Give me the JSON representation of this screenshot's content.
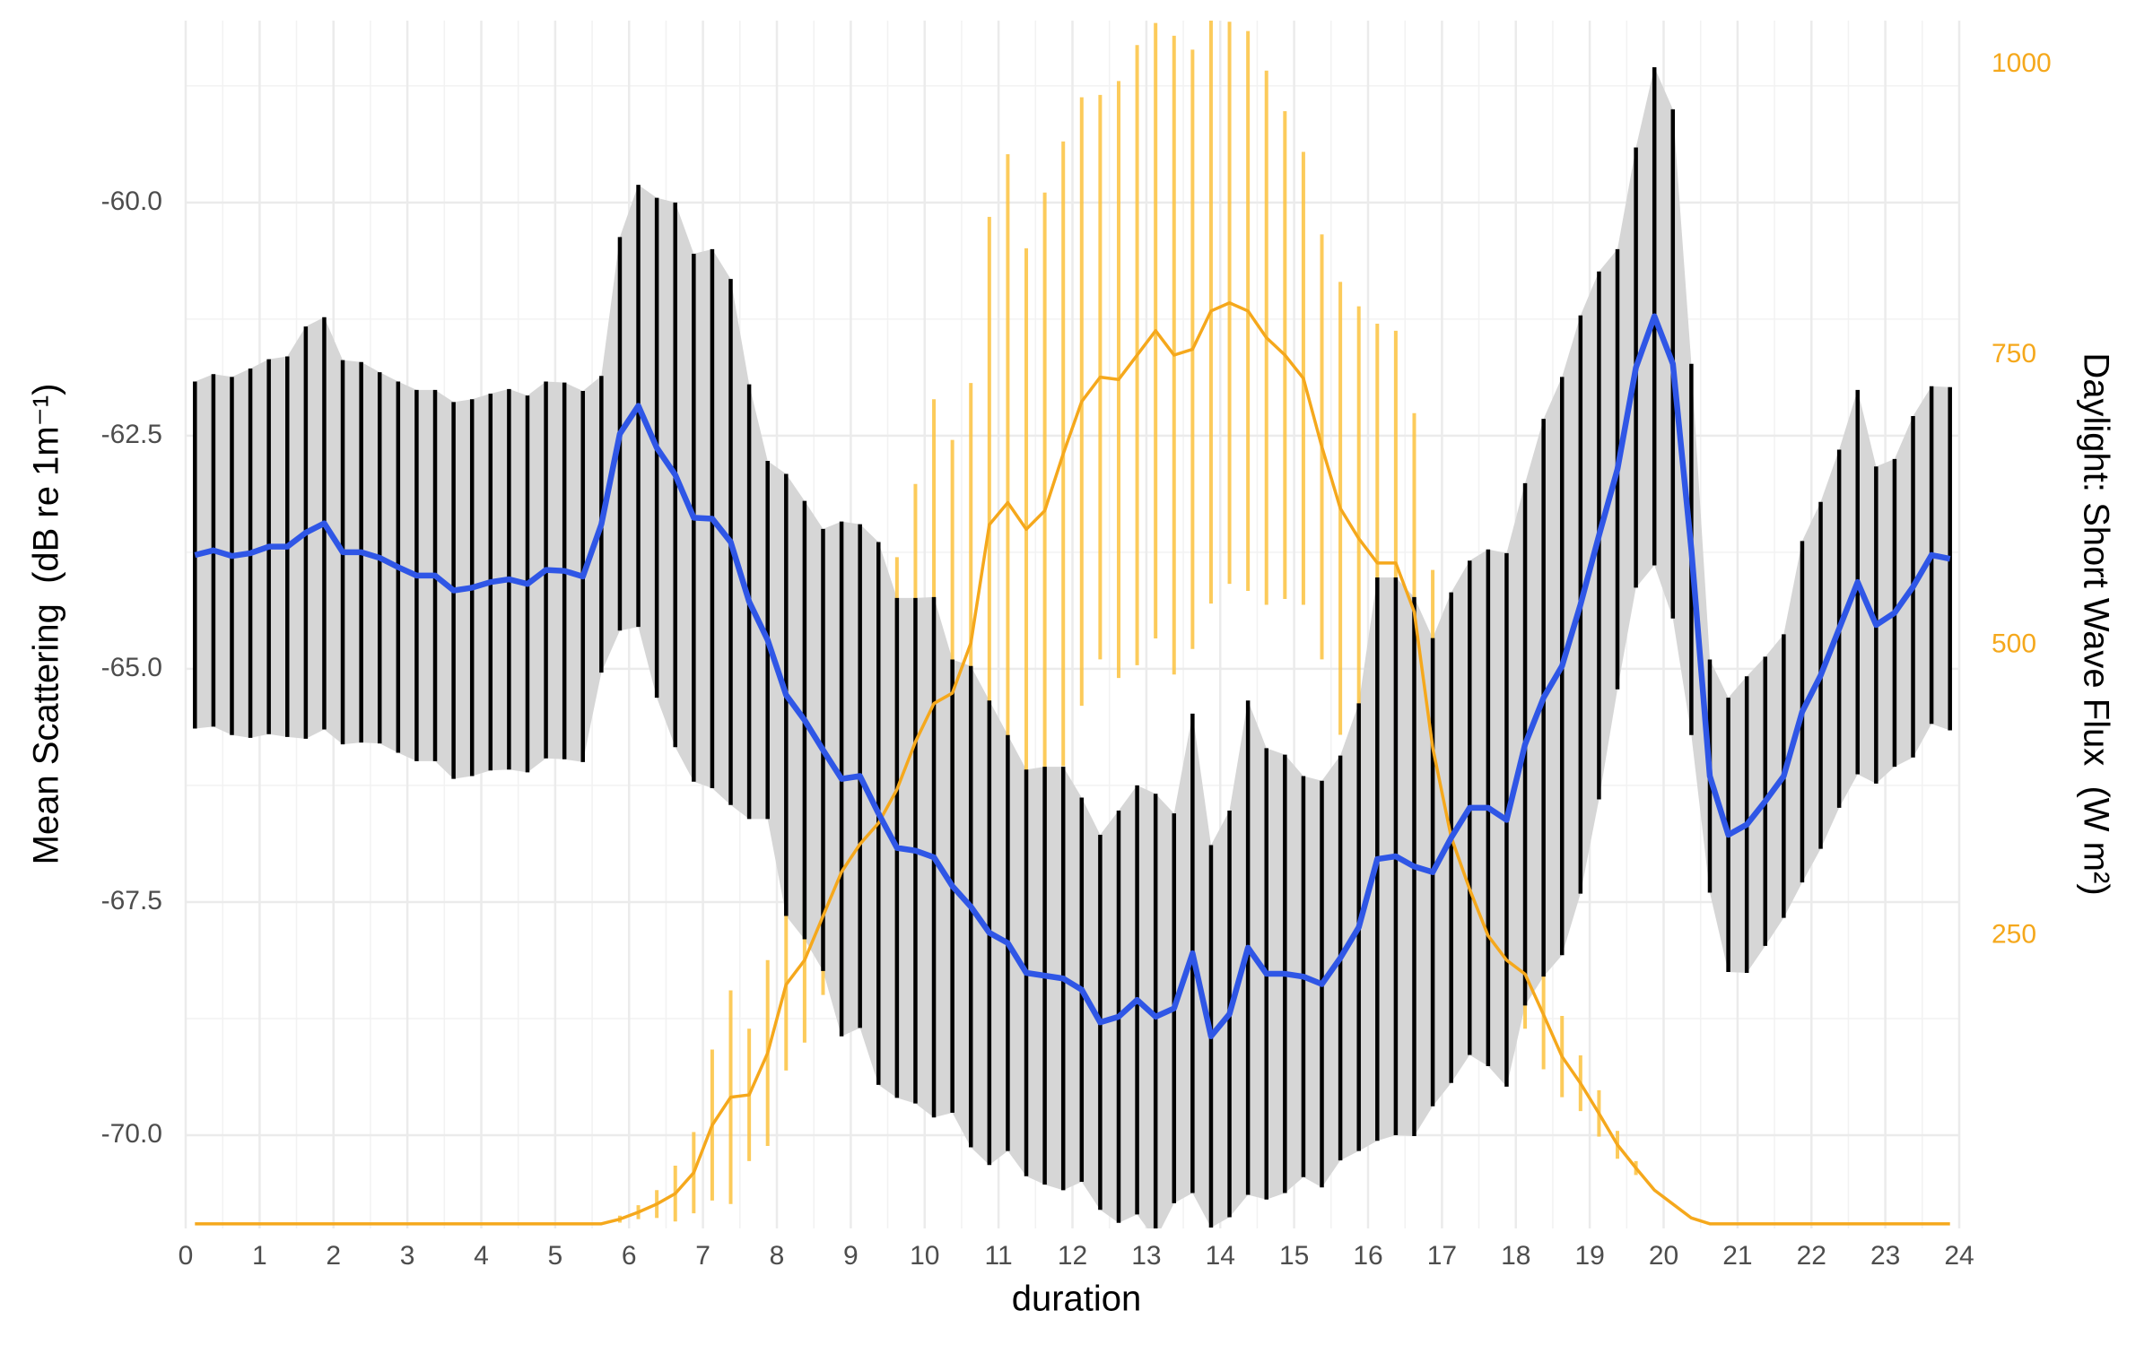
{
  "chart_data": {
    "type": "line",
    "xlabel": "duration",
    "ylabel": "Mean Scattering  (dB re 1m⁻¹)",
    "y2label": "Daylight: Short Wave Flux  (W m²)",
    "grid": true,
    "xlim": [
      0,
      24
    ],
    "xticks": [
      0,
      1,
      2,
      3,
      4,
      5,
      6,
      7,
      8,
      9,
      10,
      11,
      12,
      13,
      14,
      15,
      16,
      17,
      18,
      19,
      20,
      21,
      22,
      23,
      24
    ],
    "ylim": [
      -71.0,
      -58.05
    ],
    "yticks": [
      {
        "value": -60,
        "label": "-60.0"
      },
      -62.5,
      {
        "value": -65,
        "label": "-65.0"
      },
      -67.5,
      {
        "value": -70,
        "label": "-70.0"
      }
    ],
    "y2lim": [
      -2,
      1038
    ],
    "y2ticks": [
      250,
      500,
      750,
      1000
    ],
    "x": [
      0.125,
      0.375,
      0.625,
      0.875,
      1.125,
      1.375,
      1.625,
      1.875,
      2.125,
      2.375,
      2.625,
      2.875,
      3.125,
      3.375,
      3.625,
      3.875,
      4.125,
      4.375,
      4.625,
      4.875,
      5.125,
      5.375,
      5.625,
      5.875,
      6.125,
      6.375,
      6.625,
      6.875,
      7.125,
      7.375,
      7.625,
      7.875,
      8.125,
      8.375,
      8.625,
      8.875,
      9.125,
      9.375,
      9.625,
      9.875,
      10.125,
      10.375,
      10.625,
      10.875,
      11.125,
      11.375,
      11.625,
      11.875,
      12.125,
      12.375,
      12.625,
      12.875,
      13.125,
      13.375,
      13.625,
      13.875,
      14.125,
      14.375,
      14.625,
      14.875,
      15.125,
      15.375,
      15.625,
      15.875,
      16.125,
      16.375,
      16.625,
      16.875,
      17.125,
      17.375,
      17.625,
      17.875,
      18.125,
      18.375,
      18.625,
      18.875,
      19.125,
      19.375,
      19.625,
      19.875,
      20.125,
      20.375,
      20.625,
      20.875,
      21.125,
      21.375,
      21.625,
      21.875,
      22.125,
      22.375,
      22.625,
      22.875,
      23.125,
      23.375,
      23.625,
      23.875
    ],
    "series": [
      {
        "color": "#2f56e6",
        "errorbar_color": "#000000",
        "ribbon_color": "#d6d6d6",
        "values": [
          -63.78,
          -63.73,
          -63.79,
          -63.76,
          -63.69,
          -63.69,
          -63.54,
          -63.44,
          -63.75,
          -63.75,
          -63.81,
          -63.91,
          -64.0,
          -64.0,
          -64.16,
          -64.13,
          -64.07,
          -64.04,
          -64.09,
          -63.94,
          -63.95,
          -64.01,
          -63.45,
          -62.48,
          -62.18,
          -62.63,
          -62.92,
          -63.38,
          -63.39,
          -63.64,
          -64.28,
          -64.69,
          -65.28,
          -65.55,
          -65.87,
          -66.18,
          -66.15,
          -66.55,
          -66.92,
          -66.95,
          -67.02,
          -67.33,
          -67.55,
          -67.83,
          -67.94,
          -68.26,
          -68.29,
          -68.32,
          -68.44,
          -68.79,
          -68.73,
          -68.55,
          -68.73,
          -68.64,
          -68.05,
          -68.94,
          -68.7,
          -67.99,
          -68.27,
          -68.27,
          -68.3,
          -68.38,
          -68.1,
          -67.77,
          -67.04,
          -67.01,
          -67.12,
          -67.18,
          -66.81,
          -66.49,
          -66.49,
          -66.62,
          -65.81,
          -65.31,
          -64.97,
          -64.31,
          -63.57,
          -62.86,
          -61.77,
          -61.22,
          -61.73,
          -63.72,
          -66.15,
          -66.78,
          -66.67,
          -66.42,
          -66.15,
          -65.46,
          -65.07,
          -64.57,
          -64.07,
          -64.53,
          -64.4,
          -64.12,
          -63.78,
          -63.82
        ],
        "errors": [
          1.86,
          1.89,
          1.92,
          1.98,
          2.01,
          2.04,
          2.21,
          2.21,
          2.06,
          2.04,
          1.99,
          1.99,
          1.99,
          1.99,
          2.02,
          2.02,
          2.02,
          2.04,
          2.02,
          2.02,
          2.02,
          1.99,
          1.59,
          2.11,
          2.37,
          2.68,
          2.92,
          2.83,
          2.89,
          2.82,
          2.33,
          1.92,
          2.37,
          2.35,
          2.37,
          2.76,
          2.7,
          2.91,
          2.68,
          2.71,
          2.79,
          2.43,
          2.58,
          2.49,
          2.23,
          2.18,
          2.24,
          2.27,
          2.06,
          2.01,
          2.21,
          2.3,
          2.39,
          2.09,
          2.57,
          2.05,
          2.18,
          2.65,
          2.42,
          2.35,
          2.15,
          2.18,
          2.17,
          2.4,
          3.02,
          2.99,
          2.89,
          2.51,
          2.63,
          2.65,
          2.77,
          2.86,
          2.8,
          2.99,
          3.1,
          3.1,
          2.83,
          2.36,
          2.36,
          2.67,
          2.73,
          1.99,
          1.25,
          1.47,
          1.59,
          1.55,
          1.52,
          1.83,
          1.86,
          1.92,
          2.06,
          1.7,
          1.65,
          1.83,
          1.81,
          1.84
        ]
      },
      {
        "axis": "y2",
        "color": "#f5a81c",
        "errorbar_color": "#fcc23e",
        "values": [
          2,
          2,
          2,
          2,
          2,
          2,
          2,
          2,
          2,
          2,
          2,
          2,
          2,
          2,
          2,
          2,
          2,
          2,
          2,
          2,
          2,
          2,
          2,
          6,
          12,
          19,
          28,
          46,
          87,
          111,
          113,
          149,
          208,
          229,
          267,
          305,
          329,
          347,
          376,
          417,
          450,
          459,
          502,
          604,
          623,
          600,
          616,
          665,
          710,
          731,
          729,
          750,
          771,
          750,
          755,
          788,
          795,
          788,
          765,
          750,
          730,
          671,
          618,
          592,
          571,
          571,
          529,
          412,
          335,
          290,
          250,
          229,
          217,
          182,
          146,
          123,
          97,
          70,
          50,
          31,
          19,
          7,
          2,
          2,
          2,
          2,
          2,
          2,
          2,
          2,
          2,
          2,
          2,
          2,
          2,
          2
        ],
        "errors": [
          0,
          0,
          0,
          0,
          0,
          0,
          0,
          0,
          0,
          0,
          0,
          0,
          0,
          0,
          0,
          0,
          0,
          0,
          0,
          0,
          0,
          0,
          0,
          3,
          6,
          12,
          24,
          35,
          65,
          92,
          57,
          80,
          74,
          71,
          68,
          88,
          94,
          200,
          200,
          222,
          262,
          218,
          224,
          265,
          300,
          242,
          274,
          269,
          262,
          243,
          257,
          267,
          265,
          275,
          258,
          252,
          242,
          241,
          230,
          210,
          195,
          183,
          195,
          200,
          206,
          200,
          171,
          153,
          118,
          83,
          73,
          47,
          47,
          47,
          35,
          24,
          20,
          12,
          6,
          0,
          0,
          0,
          0,
          0,
          0,
          0,
          0,
          0,
          0,
          0,
          0,
          0,
          0,
          0,
          0,
          0
        ]
      }
    ]
  }
}
